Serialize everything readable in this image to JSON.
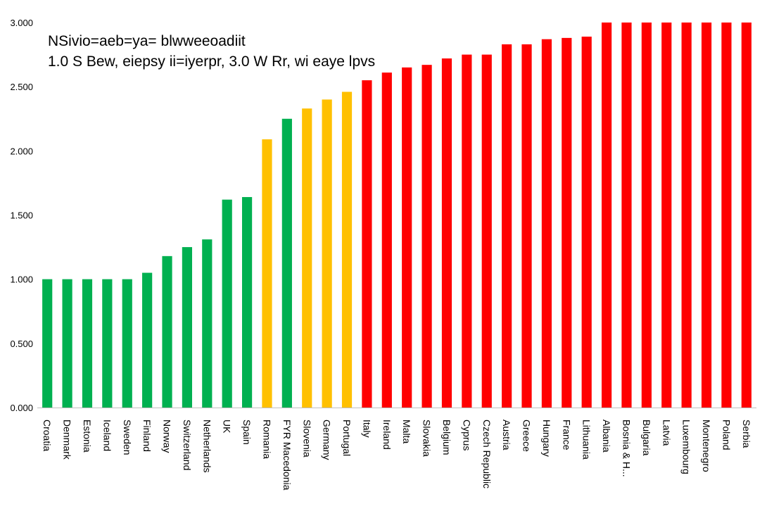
{
  "chart_data": {
    "type": "bar",
    "title": "NSivio=aeb=ya= blwweeoadiit",
    "subtitle": "1.0 S Bew, eiepsy ii=iyerpr, 3.0 W Rr, wi eaye lpvs",
    "xlabel": "",
    "ylabel": "",
    "ylim": [
      0,
      3
    ],
    "yticks": [
      "0.000",
      "0.500",
      "1.000",
      "1.500",
      "2.000",
      "2.500",
      "3.000"
    ],
    "grid": false,
    "legend": "none",
    "colors": {
      "green": "#00B050",
      "yellow": "#FFC000",
      "red": "#FF0000"
    },
    "categories": [
      "Croatia",
      "Denmark",
      "Estonia",
      "Iceland",
      "Sweden",
      "Finland",
      "Norway",
      "Switzerland",
      "Netherlands",
      "UK",
      "Spain",
      "Romania",
      "FYR Macedonia",
      "Slovenia",
      "Germany",
      "Portugal",
      "Italy",
      "Ireland",
      "Malta",
      "Slovakia",
      "Belgium",
      "Cyprus",
      "Czech Republic",
      "Austria",
      "Greece",
      "Hungary",
      "France",
      "Lithuania",
      "Albania",
      "Bosnia & H...",
      "Bulgaria",
      "Latvia",
      "Luxembourg",
      "Montenegro",
      "Poland",
      "Serbia"
    ],
    "values": [
      1.0,
      1.0,
      1.0,
      1.0,
      1.0,
      1.05,
      1.18,
      1.25,
      1.31,
      1.62,
      1.64,
      2.09,
      2.25,
      2.33,
      2.4,
      2.46,
      2.55,
      2.61,
      2.65,
      2.67,
      2.72,
      2.75,
      2.75,
      2.83,
      2.83,
      2.87,
      2.88,
      2.89,
      3.0,
      3.0,
      3.0,
      3.0,
      3.0,
      3.0,
      3.0,
      3.0
    ],
    "bar_colors": [
      "green",
      "green",
      "green",
      "green",
      "green",
      "green",
      "green",
      "green",
      "green",
      "green",
      "green",
      "yellow",
      "green",
      "yellow",
      "yellow",
      "yellow",
      "red",
      "red",
      "red",
      "red",
      "red",
      "red",
      "red",
      "red",
      "red",
      "red",
      "red",
      "red",
      "red",
      "red",
      "red",
      "red",
      "red",
      "red",
      "red",
      "red"
    ]
  }
}
